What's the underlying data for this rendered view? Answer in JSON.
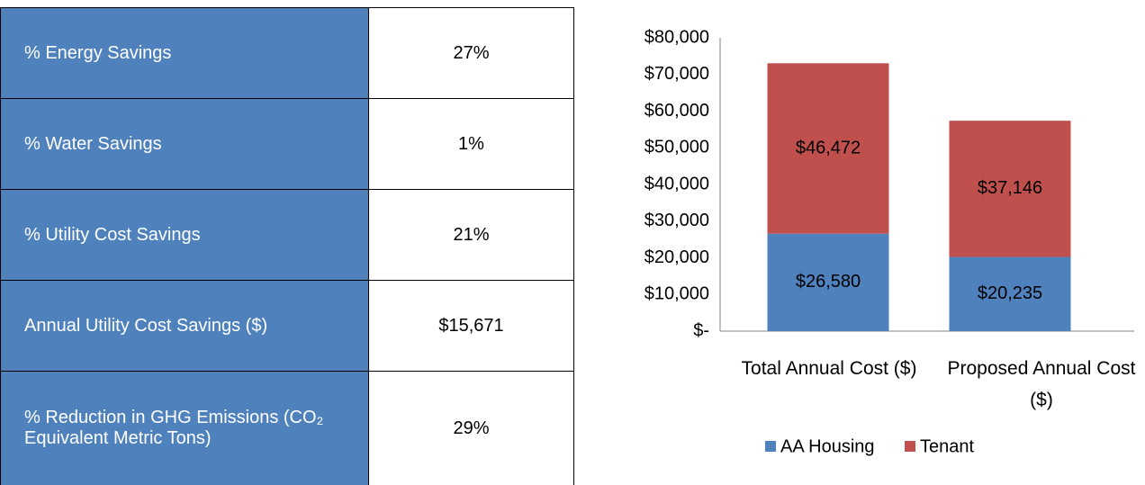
{
  "table": {
    "rows": [
      [
        "% Energy Savings",
        "27%"
      ],
      [
        "% Water Savings",
        "1%"
      ],
      [
        "% Utility Cost Savings",
        "21%"
      ],
      [
        "Annual Utility Cost Savings ($)",
        "$15,671"
      ],
      [
        "% Reduction  in GHG Emissions (CO₂ Equivalent  Metric Tons)",
        "29%"
      ]
    ]
  },
  "chart_data": {
    "type": "stacked_bar",
    "categories": [
      "Total Annual Cost ($)",
      "Proposed Annual Cost ($)"
    ],
    "series": [
      {
        "name": "AA Housing",
        "color": "#4f81bd",
        "values": [
          26580,
          20235
        ],
        "value_labels": [
          "$26,580",
          "$20,235"
        ]
      },
      {
        "name": "Tenant",
        "color": "#c0504d",
        "values": [
          46472,
          37146
        ],
        "value_labels": [
          "$46,472",
          "$37,146"
        ]
      }
    ],
    "ylim": [
      0,
      80000
    ],
    "yticks": [
      {
        "value": 0,
        "label": "$-"
      },
      {
        "value": 10000,
        "label": "$10,000"
      },
      {
        "value": 20000,
        "label": "$20,000"
      },
      {
        "value": 30000,
        "label": "$30,000"
      },
      {
        "value": 40000,
        "label": "$40,000"
      },
      {
        "value": 50000,
        "label": "$50,000"
      },
      {
        "value": 60000,
        "label": "$60,000"
      },
      {
        "value": 70000,
        "label": "$70,000"
      },
      {
        "value": 80000,
        "label": "$80,000"
      }
    ],
    "grid": false,
    "legend": "bottom"
  }
}
